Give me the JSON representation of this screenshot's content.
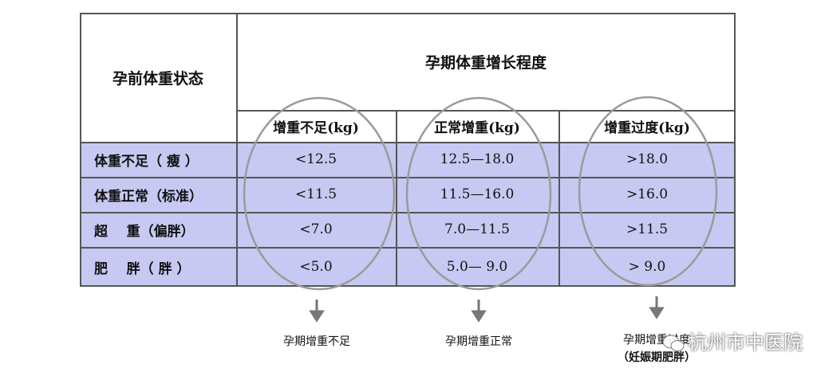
{
  "table": {
    "corner_header": "孕前体重状态",
    "group_header": "孕期体重增长程度",
    "columns": [
      "增重不足(kg)",
      "正常增重(kg)",
      "增重过度(kg)"
    ],
    "rows": [
      {
        "label": "体重不足（ 瘦 ）",
        "values": [
          "<12.5",
          "12.5—18.0",
          ">18.0"
        ]
      },
      {
        "label": "体重正常（标准）",
        "values": [
          "<11.5",
          "11.5—16.0",
          ">16.0"
        ]
      },
      {
        "label": "超    重（偏胖）",
        "values": [
          "<7.0",
          "7.0—11.5",
          ">11.5"
        ]
      },
      {
        "label": "肥    胖（ 胖 ）",
        "values": [
          "<5.0",
          "5.0— 9.0",
          "> 9.0"
        ]
      }
    ]
  },
  "outcomes": [
    "孕期增重不足",
    "孕期增重正常",
    "孕期增重过度",
    "（妊娠期肥胖）"
  ],
  "watermark": "杭州市中医院",
  "colors": {
    "row_fill": "#c7c9f2",
    "border": "#555555",
    "circle": "#9a9a9a",
    "arrow": "#777777"
  }
}
